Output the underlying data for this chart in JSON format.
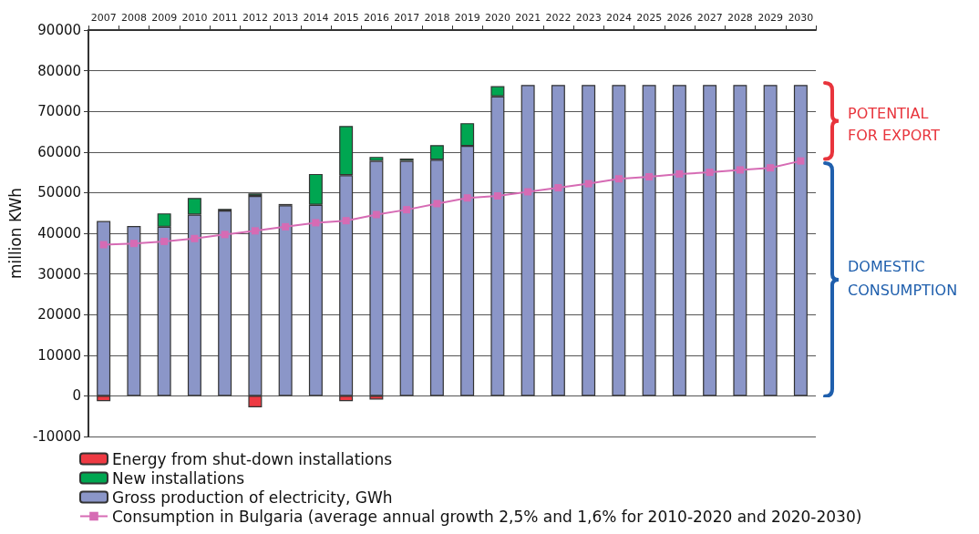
{
  "chart_data": {
    "type": "bar",
    "stacked": true,
    "ylabel": "million KWh",
    "categories": [
      "2007",
      "2008",
      "2009",
      "2010",
      "2011",
      "2012",
      "2013",
      "2014",
      "2015",
      "2016",
      "2017",
      "2018",
      "2019",
      "2020",
      "2021",
      "2022",
      "2023",
      "2024",
      "2025",
      "2026",
      "2027",
      "2028",
      "2029",
      "2030"
    ],
    "series": [
      {
        "name": "Gross production of electricity, GWh",
        "color": "#8b96c8",
        "values": [
          43000,
          41800,
          41600,
          44600,
          45600,
          49200,
          46900,
          47000,
          54300,
          57800,
          57800,
          58100,
          61500,
          73700,
          76500,
          76500,
          76500,
          76500,
          76500,
          76500,
          76500,
          76500,
          76500,
          76500
        ]
      },
      {
        "name": "New installations",
        "color": "#00a651",
        "values": [
          null,
          null,
          3300,
          4100,
          400,
          600,
          300,
          7600,
          12100,
          1000,
          600,
          3600,
          5600,
          2500,
          null,
          null,
          null,
          null,
          null,
          null,
          null,
          null,
          null,
          null
        ]
      },
      {
        "name": "Energy from shut-down installations",
        "color": "#ee3a43",
        "values": [
          -1300,
          null,
          null,
          null,
          null,
          -2800,
          null,
          null,
          -1300,
          -900,
          null,
          null,
          null,
          null,
          null,
          null,
          null,
          null,
          null,
          null,
          null,
          null,
          null,
          null
        ]
      },
      {
        "name": "Consumption in Bulgaria (average annual growth 2,5% and 1,6% for 2010-2020 and 2020-2030)",
        "type": "line",
        "color": "#d66bb4",
        "values": [
          37200,
          37500,
          38000,
          38700,
          39700,
          40600,
          41600,
          42600,
          43100,
          44600,
          45800,
          47300,
          48700,
          49200,
          50200,
          51200,
          52200,
          53400,
          53900,
          54600,
          55000,
          55600,
          56100,
          57800
        ]
      }
    ],
    "ylim": [
      -10000,
      90000
    ],
    "yticks": [
      -10000,
      0,
      10000,
      20000,
      30000,
      40000,
      50000,
      60000,
      70000,
      80000,
      90000
    ],
    "grid": "y",
    "legend": "bottom left",
    "marker": "square",
    "line_style": "solid",
    "annotations": [
      "POTENTIAL\nFOR EXPORT",
      "DOMESTIC\nCONSUMPTION"
    ]
  }
}
